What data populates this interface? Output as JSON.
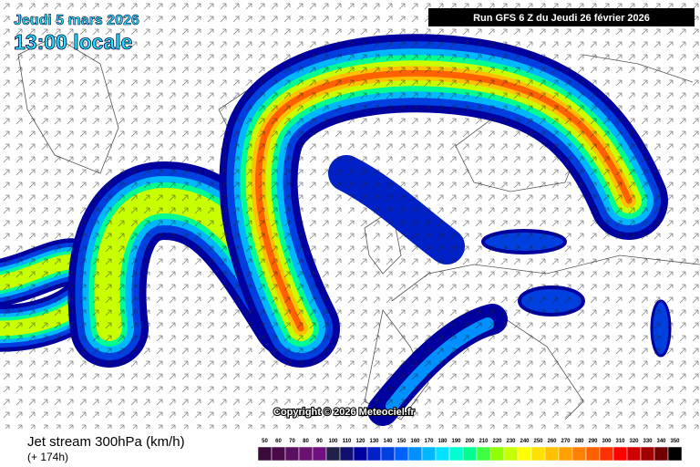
{
  "header": {
    "date": "Jeudi 5 mars 2026",
    "time": "13:00 locale",
    "run": "Run GFS 6 Z du Jeudi 26 février 2026"
  },
  "map": {
    "copyright": "Copyright © 2026 Meteociel.fr"
  },
  "footer": {
    "title": "Jet stream 300hPa (km/h)",
    "lead": "(+ 174h)"
  },
  "legend": {
    "values": [
      50,
      60,
      70,
      80,
      90,
      100,
      110,
      120,
      130,
      140,
      150,
      160,
      170,
      180,
      190,
      200,
      210,
      220,
      230,
      240,
      250,
      260,
      270,
      280,
      290,
      300,
      310,
      320,
      330,
      340,
      350
    ],
    "colors": [
      "#3a0a3a",
      "#4a0a4a",
      "#5a1060",
      "#6a1070",
      "#701080",
      "#20204a",
      "#101070",
      "#0000a0",
      "#0020c8",
      "#0040e0",
      "#0060ff",
      "#0090ff",
      "#00b8ff",
      "#00e0ff",
      "#00ffd0",
      "#00ff90",
      "#40ff40",
      "#90ff00",
      "#c8ff00",
      "#ffff00",
      "#ffe000",
      "#ffc000",
      "#ffa000",
      "#ff8000",
      "#ff6000",
      "#ff3000",
      "#ff0000",
      "#d00000",
      "#a00000",
      "#700000",
      "#000000"
    ]
  }
}
